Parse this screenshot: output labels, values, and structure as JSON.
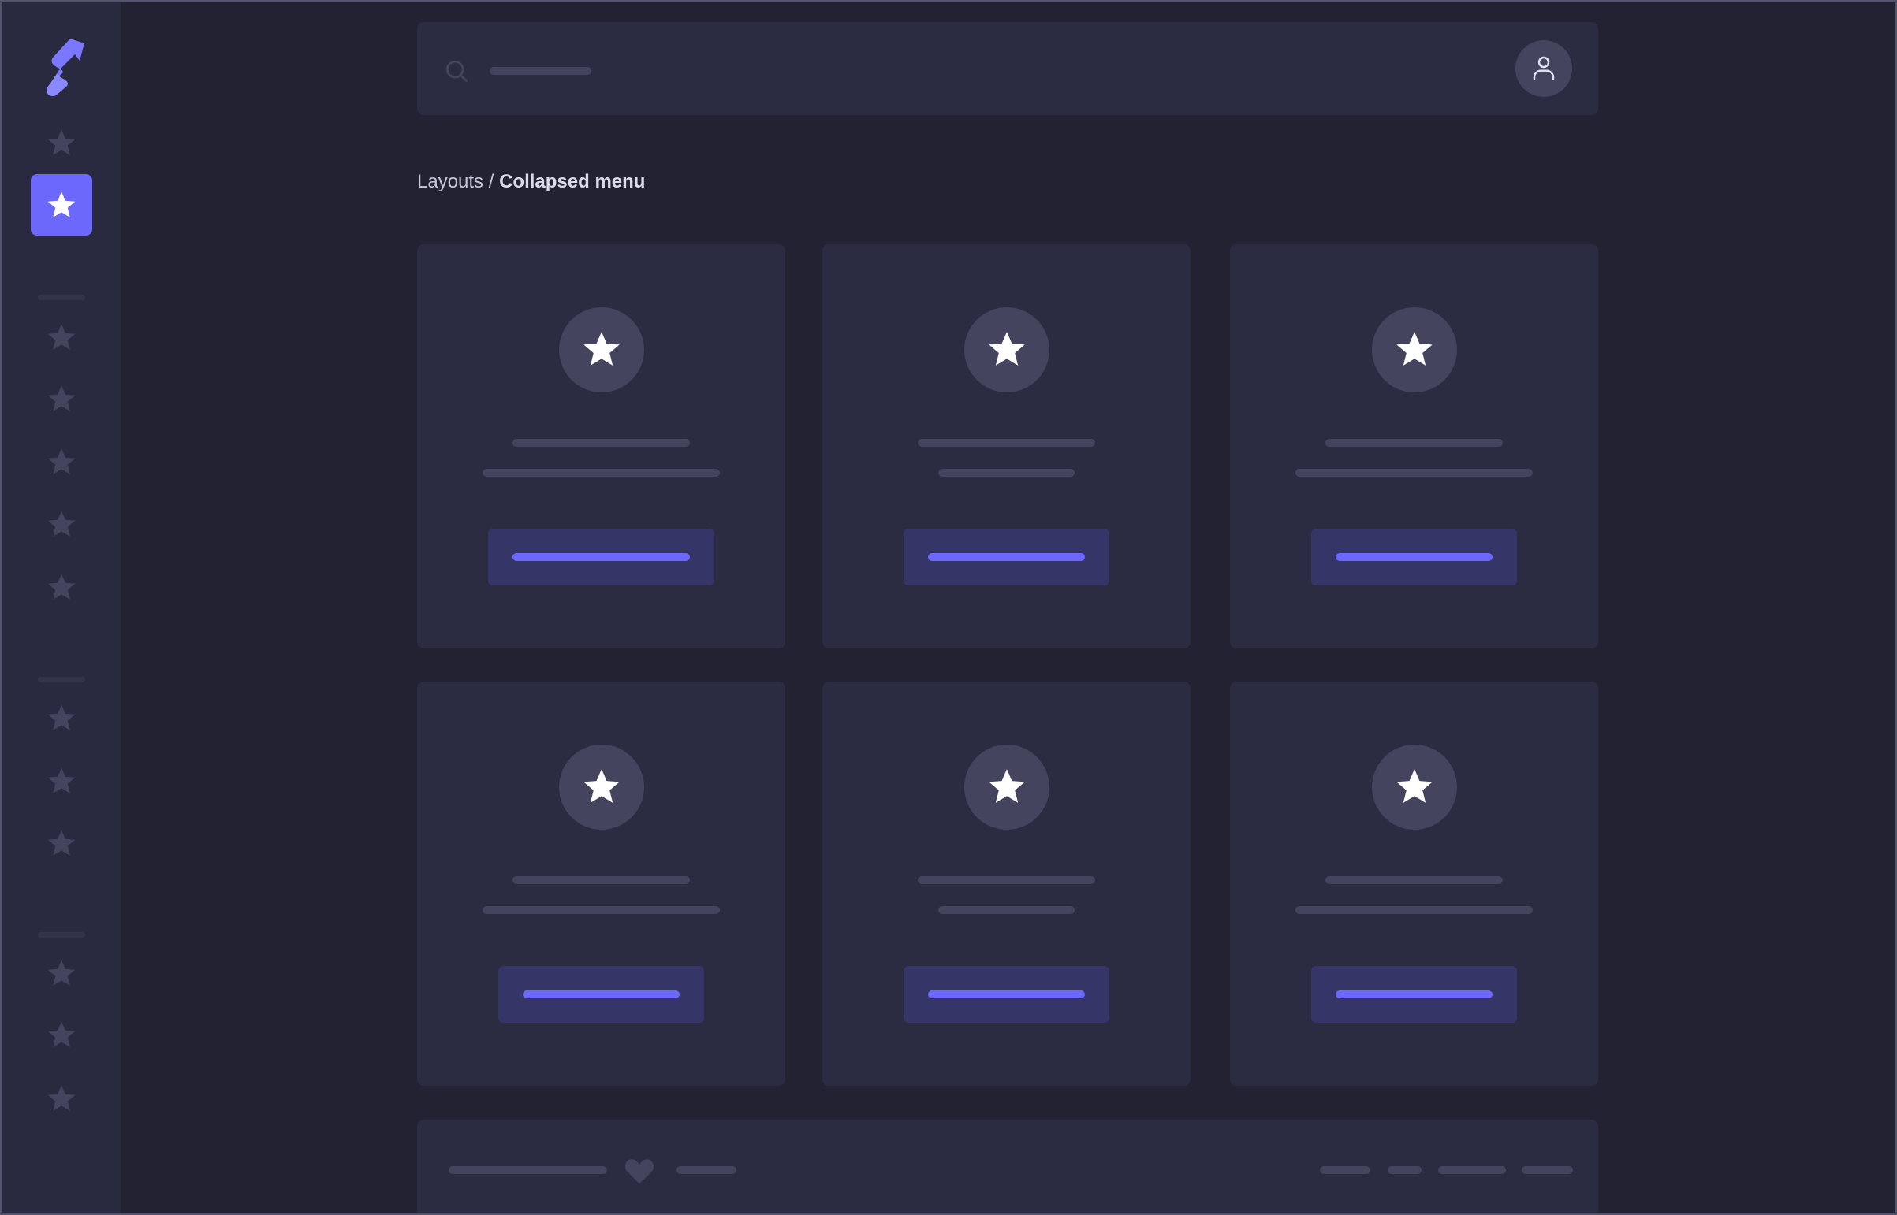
{
  "breadcrumb": {
    "parent": "Layouts",
    "separator": " / ",
    "current": "Collapsed menu"
  },
  "icons": {
    "logo": "app-logo",
    "nav": "star-icon",
    "search": "search-icon",
    "user": "user-icon",
    "footer": "heart-icon"
  },
  "colors": {
    "accent": "#6b68fb",
    "background": "#232233",
    "surface": "#2b2b41",
    "sidebar": "#292a3f",
    "muted": "#45445f"
  },
  "sidebar": {
    "active_index": 1
  },
  "cards_count": 6
}
